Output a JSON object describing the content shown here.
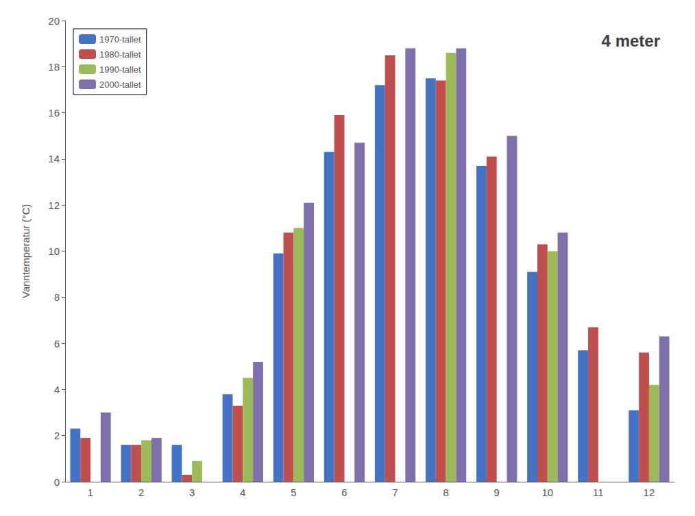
{
  "chart_data": {
    "type": "bar",
    "title": "4 meter",
    "ylabel": "Vanntemperatur (°C)",
    "categories": [
      1,
      2,
      3,
      4,
      5,
      6,
      7,
      8,
      9,
      10,
      11,
      12
    ],
    "series": [
      {
        "name": "1970-tallet",
        "color": "#4472C4",
        "values": [
          2.3,
          1.6,
          1.6,
          3.8,
          9.9,
          14.3,
          17.2,
          17.5,
          13.7,
          9.1,
          5.7,
          3.1
        ]
      },
      {
        "name": "1980-tallet",
        "color": "#C0504D",
        "values": [
          1.9,
          1.6,
          0.3,
          3.3,
          10.8,
          15.9,
          18.5,
          17.4,
          14.1,
          10.3,
          6.7,
          5.6
        ]
      },
      {
        "name": "1990-tallet",
        "color": "#9BBB59",
        "values": [
          null,
          1.8,
          0.9,
          4.5,
          11.0,
          null,
          null,
          18.6,
          null,
          10.0,
          null,
          4.2
        ]
      },
      {
        "name": "2000-tallet",
        "color": "#7f6faa",
        "values": [
          3.0,
          1.9,
          null,
          5.2,
          12.1,
          14.7,
          18.8,
          18.8,
          15.0,
          10.8,
          null,
          6.3
        ]
      }
    ],
    "ylim": [
      0,
      20
    ],
    "yticks": [
      0,
      2,
      4,
      6,
      8,
      10,
      12,
      14,
      16,
      18,
      20
    ],
    "grid": false,
    "legend": "upper left"
  }
}
